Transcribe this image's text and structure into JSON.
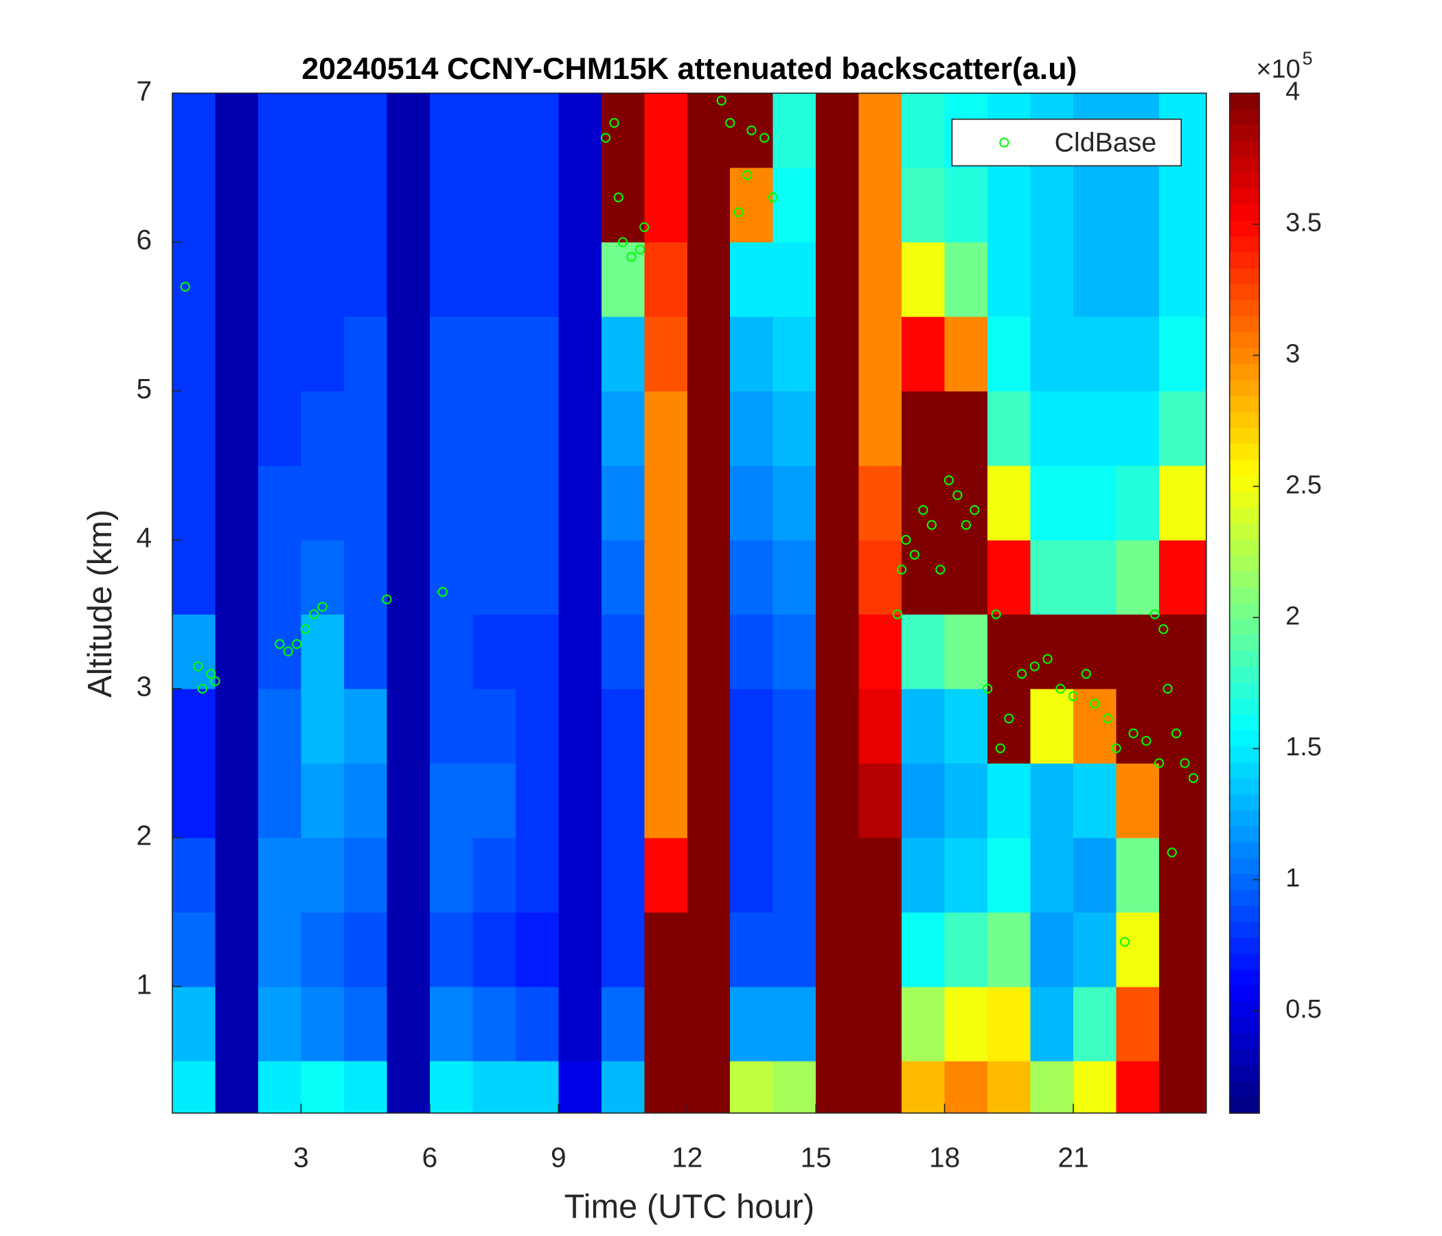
{
  "chart_data": {
    "type": "heatmap",
    "title": "20240514 CCNY-CHM15K attenuated backscatter(a.u)",
    "x_label": "Time (UTC hour)",
    "y_label": "Altitude (km)",
    "xlim": [
      0,
      24.1
    ],
    "ylim": [
      0.15,
      7
    ],
    "xticks": [
      3,
      6,
      9,
      12,
      15,
      18,
      21
    ],
    "yticks": [
      1,
      2,
      3,
      4,
      5,
      6,
      7
    ],
    "x_edges": [
      0,
      1,
      2,
      3,
      4,
      5,
      6,
      7,
      8,
      9,
      10,
      11,
      12,
      13,
      14,
      15,
      16,
      17,
      18,
      19,
      20,
      21,
      22,
      23,
      24.1
    ],
    "y_edges": [
      0.15,
      0.5,
      1,
      1.5,
      2,
      2.5,
      3,
      3.5,
      4,
      4.5,
      5,
      5.5,
      6,
      6.5,
      7
    ],
    "z": [
      [
        1.5,
        0.3,
        1.5,
        1.6,
        1.5,
        0.3,
        1.5,
        1.4,
        1.4,
        0.5,
        1.3,
        4,
        4,
        2.3,
        2.2,
        4,
        4,
        2.8,
        3.0,
        2.8,
        2.2,
        2.5,
        3.5,
        4
      ],
      [
        1.3,
        0.3,
        1.2,
        1.1,
        1.0,
        0.3,
        1.1,
        1.0,
        0.9,
        0.4,
        1.0,
        4,
        4,
        1.2,
        1.2,
        4,
        4,
        2.2,
        2.5,
        2.6,
        1.3,
        1.8,
        3.2,
        4
      ],
      [
        1.0,
        0.3,
        1.1,
        1.0,
        0.9,
        0.3,
        0.9,
        0.8,
        0.7,
        0.4,
        0.8,
        4,
        4,
        0.9,
        0.9,
        4,
        4,
        1.6,
        1.8,
        2.0,
        1.2,
        1.3,
        2.5,
        4
      ],
      [
        0.9,
        0.3,
        1.1,
        1.1,
        1.0,
        0.3,
        1.0,
        0.9,
        0.8,
        0.4,
        0.8,
        3.5,
        4,
        0.8,
        0.9,
        4,
        4,
        1.3,
        1.4,
        1.6,
        1.3,
        1.2,
        2.0,
        4
      ],
      [
        0.7,
        0.3,
        1.0,
        1.2,
        1.1,
        0.3,
        1.0,
        1.0,
        0.8,
        0.4,
        0.8,
        3,
        4,
        0.8,
        0.9,
        4,
        3.8,
        1.2,
        1.3,
        1.5,
        1.3,
        1.4,
        3.0,
        4
      ],
      [
        0.7,
        0.3,
        1.0,
        1.3,
        1.2,
        0.3,
        0.9,
        0.9,
        0.8,
        0.4,
        0.8,
        3,
        4,
        0.8,
        0.9,
        4,
        3.6,
        1.3,
        1.4,
        4,
        2.5,
        3.0,
        4,
        4
      ],
      [
        1.2,
        0.3,
        0.9,
        1.3,
        0.9,
        0.3,
        0.9,
        0.8,
        0.8,
        0.4,
        0.9,
        3,
        4,
        0.9,
        1.0,
        4,
        3.5,
        1.8,
        2.0,
        4,
        4,
        4,
        4,
        4
      ],
      [
        0.8,
        0.3,
        0.9,
        1.0,
        0.9,
        0.3,
        0.9,
        0.9,
        0.9,
        0.4,
        1.0,
        3,
        4,
        1.0,
        1.1,
        4,
        3.3,
        4,
        4,
        3.5,
        1.8,
        1.8,
        2.0,
        3.5
      ],
      [
        0.8,
        0.3,
        0.9,
        0.9,
        0.9,
        0.3,
        0.9,
        0.9,
        0.9,
        0.4,
        1.1,
        3,
        4,
        1.1,
        1.2,
        4,
        3.2,
        4,
        4,
        2.5,
        1.6,
        1.6,
        1.7,
        2.5
      ],
      [
        0.8,
        0.3,
        0.8,
        0.9,
        0.9,
        0.3,
        0.9,
        0.9,
        0.9,
        0.4,
        1.2,
        3,
        4,
        1.2,
        1.3,
        4,
        3.0,
        4,
        4,
        1.8,
        1.5,
        1.5,
        1.5,
        1.8
      ],
      [
        0.8,
        0.3,
        0.8,
        0.8,
        0.9,
        0.3,
        0.9,
        0.9,
        0.9,
        0.4,
        1.3,
        3.2,
        4,
        1.3,
        1.4,
        4,
        3.0,
        3.5,
        3.0,
        1.6,
        1.4,
        1.4,
        1.4,
        1.6
      ],
      [
        0.8,
        0.3,
        0.8,
        0.8,
        0.8,
        0.3,
        0.8,
        0.8,
        0.8,
        0.4,
        2.0,
        3.3,
        4,
        1.5,
        1.5,
        4,
        3.0,
        2.5,
        2.0,
        1.5,
        1.4,
        1.3,
        1.3,
        1.5
      ],
      [
        0.8,
        0.3,
        0.8,
        0.8,
        0.8,
        0.3,
        0.8,
        0.8,
        0.8,
        0.4,
        4,
        3.5,
        4,
        3.0,
        1.6,
        4,
        3.0,
        1.8,
        1.7,
        1.5,
        1.4,
        1.3,
        1.3,
        1.5
      ],
      [
        0.8,
        0.3,
        0.8,
        0.8,
        0.8,
        0.3,
        0.8,
        0.8,
        0.8,
        0.4,
        4,
        3.5,
        4,
        4,
        1.7,
        4,
        3.0,
        1.7,
        1.6,
        1.5,
        1.4,
        1.3,
        1.3,
        1.5
      ]
    ],
    "colormap": "jet",
    "clim": [
      0.11,
      4
    ],
    "cticks": [
      0.5,
      1,
      1.5,
      2,
      2.5,
      3,
      3.5,
      4
    ],
    "cscale_base": "×10",
    "cscale_exp": "5",
    "legend_position": "upper right",
    "series": [
      {
        "name": "CldBase",
        "color": "#00ff00",
        "x": [
          0.3,
          0.6,
          0.7,
          0.9,
          1.0,
          2.5,
          2.7,
          2.9,
          3.1,
          3.3,
          3.5,
          5.0,
          6.3,
          10.1,
          10.3,
          10.4,
          10.5,
          10.7,
          10.9,
          11.0,
          12.8,
          13.0,
          13.2,
          13.4,
          13.5,
          13.8,
          14.0,
          16.9,
          17.0,
          17.1,
          17.3,
          17.5,
          17.7,
          17.9,
          18.1,
          18.3,
          18.5,
          18.7,
          19.0,
          19.2,
          19.3,
          19.5,
          19.8,
          20.1,
          20.4,
          20.7,
          21.0,
          21.3,
          21.5,
          21.8,
          22.0,
          22.2,
          22.4,
          22.7,
          23.0,
          23.1,
          23.2,
          23.4,
          23.6,
          23.8,
          23.3,
          22.9
        ],
        "y": [
          5.7,
          3.15,
          3.0,
          3.1,
          3.05,
          3.3,
          3.25,
          3.3,
          3.4,
          3.5,
          3.55,
          3.6,
          3.65,
          6.7,
          6.8,
          6.3,
          6.0,
          5.9,
          5.95,
          6.1,
          6.95,
          6.8,
          6.2,
          6.45,
          6.75,
          6.7,
          6.3,
          3.5,
          3.8,
          4.0,
          3.9,
          4.2,
          4.1,
          3.8,
          4.4,
          4.3,
          4.1,
          4.2,
          3.0,
          3.5,
          2.6,
          2.8,
          3.1,
          3.15,
          3.2,
          3.0,
          2.95,
          3.1,
          2.9,
          2.8,
          2.6,
          1.3,
          2.7,
          2.65,
          2.5,
          3.4,
          3.0,
          2.7,
          2.5,
          2.4,
          1.9,
          3.5
        ]
      }
    ]
  }
}
